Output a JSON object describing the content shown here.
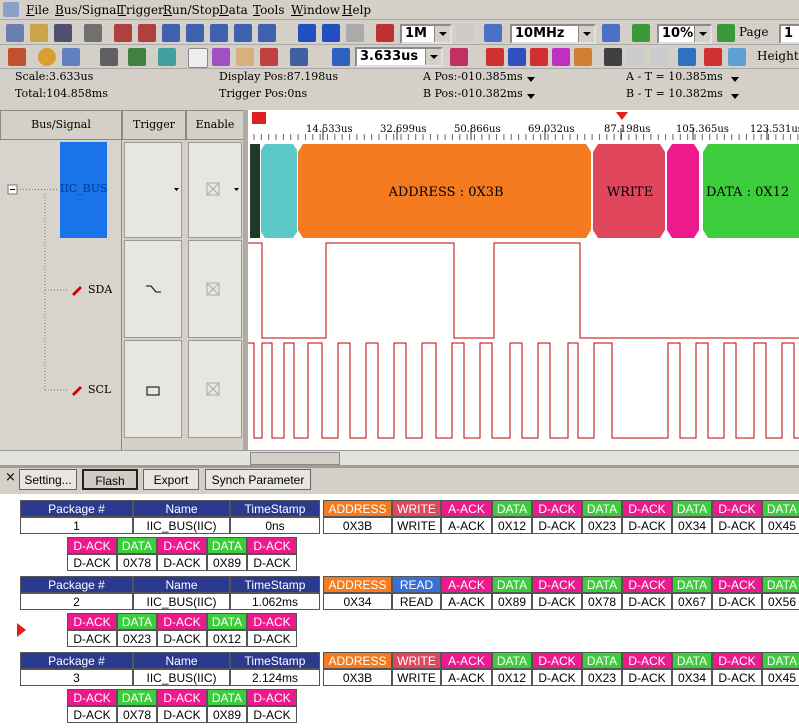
{
  "menu": [
    "File",
    "Bus/Signal",
    "Trigger",
    "Run/Stop",
    "Data",
    "Tools",
    "Window",
    "Help"
  ],
  "toolbar": {
    "sample_depth": "1M",
    "sample_rate": "10MHz",
    "trigger_percent": "10%",
    "page_label": "Page",
    "page": "1",
    "scale": "3.633us",
    "height_label": "Height"
  },
  "status": {
    "scale": "Scale:3.633us",
    "total": "Total:104.858ms",
    "display_pos": "Display Pos:87.198us",
    "trigger_pos": "Trigger Pos:0ns",
    "a_pos": "A Pos:-010.385ms",
    "b_pos": "B Pos:-010.382ms",
    "a_t": "A - T = 10.385ms",
    "b_t": "B - T = 10.382ms"
  },
  "columns": [
    "Bus/Signal",
    "Trigger",
    "Enable"
  ],
  "signals": [
    "IIC_BUS(II",
    "SDA",
    "SCL"
  ],
  "ruler": [
    "14.533us",
    "32.699us",
    "50.866us",
    "69.032us",
    "87.198us",
    "105.365us",
    "123.531us"
  ],
  "decode": [
    "ADDRESS : 0X3B",
    "WRITE",
    "DATA : 0X12"
  ],
  "buttons": [
    "Setting...",
    "Flash",
    "Export",
    "Synch Parameter"
  ],
  "table_header": [
    "Package #",
    "Name",
    "TimeStamp"
  ],
  "packets": [
    {
      "number": "1",
      "name": "IIC_BUS(IIC)",
      "timestamp": "0ns",
      "lines": [
        [
          {
            "type": "ADDRESS",
            "value": "0X3B"
          },
          {
            "type": "WRITE",
            "value": "WRITE"
          },
          {
            "type": "A-ACK",
            "value": "A-ACK"
          },
          {
            "type": "DATA",
            "value": "0X12"
          },
          {
            "type": "D-ACK",
            "value": "D-ACK"
          },
          {
            "type": "DATA",
            "value": "0X23"
          },
          {
            "type": "D-ACK",
            "value": "D-ACK"
          },
          {
            "type": "DATA",
            "value": "0X34"
          },
          {
            "type": "D-ACK",
            "value": "D-ACK"
          },
          {
            "type": "DATA",
            "value": "0X45"
          }
        ],
        [
          {
            "type": "D-ACK",
            "value": "D-ACK"
          },
          {
            "type": "DATA",
            "value": "0X78"
          },
          {
            "type": "D-ACK",
            "value": "D-ACK"
          },
          {
            "type": "DATA",
            "value": "0X89"
          },
          {
            "type": "D-ACK",
            "value": "D-ACK"
          }
        ]
      ]
    },
    {
      "number": "2",
      "name": "IIC_BUS(IIC)",
      "timestamp": "1.062ms",
      "lines": [
        [
          {
            "type": "ADDRESS",
            "value": "0X34"
          },
          {
            "type": "READ",
            "value": "READ"
          },
          {
            "type": "A-ACK",
            "value": "A-ACK"
          },
          {
            "type": "DATA",
            "value": "0X89"
          },
          {
            "type": "D-ACK",
            "value": "D-ACK"
          },
          {
            "type": "DATA",
            "value": "0X78"
          },
          {
            "type": "D-ACK",
            "value": "D-ACK"
          },
          {
            "type": "DATA",
            "value": "0X67"
          },
          {
            "type": "D-ACK",
            "value": "D-ACK"
          },
          {
            "type": "DATA",
            "value": "0X56"
          }
        ],
        [
          {
            "type": "D-ACK",
            "value": "D-ACK"
          },
          {
            "type": "DATA",
            "value": "0X23"
          },
          {
            "type": "D-ACK",
            "value": "D-ACK"
          },
          {
            "type": "DATA",
            "value": "0X12"
          },
          {
            "type": "D-ACK",
            "value": "D-ACK"
          }
        ]
      ]
    },
    {
      "number": "3",
      "name": "IIC_BUS(IIC)",
      "timestamp": "2.124ms",
      "lines": [
        [
          {
            "type": "ADDRESS",
            "value": "0X3B"
          },
          {
            "type": "WRITE",
            "value": "WRITE"
          },
          {
            "type": "A-ACK",
            "value": "A-ACK"
          },
          {
            "type": "DATA",
            "value": "0X12"
          },
          {
            "type": "D-ACK",
            "value": "D-ACK"
          },
          {
            "type": "DATA",
            "value": "0X23"
          },
          {
            "type": "D-ACK",
            "value": "D-ACK"
          },
          {
            "type": "DATA",
            "value": "0X34"
          },
          {
            "type": "D-ACK",
            "value": "D-ACK"
          },
          {
            "type": "DATA",
            "value": "0X45"
          }
        ],
        [
          {
            "type": "D-ACK",
            "value": "D-ACK"
          },
          {
            "type": "DATA",
            "value": "0X78"
          },
          {
            "type": "D-ACK",
            "value": "D-ACK"
          },
          {
            "type": "DATA",
            "value": "0X89"
          },
          {
            "type": "D-ACK",
            "value": "D-ACK"
          }
        ]
      ]
    }
  ]
}
